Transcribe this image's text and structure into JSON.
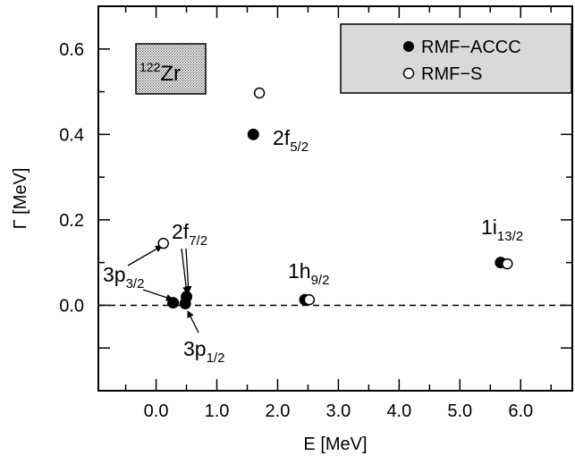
{
  "chart_data": {
    "type": "scatter",
    "xlabel": "E [MeV]",
    "ylabel": "Γ [MeV]",
    "xlim": [
      -0.95,
      6.85
    ],
    "ylim": [
      -0.2,
      0.7
    ],
    "x_ticks": [
      0.0,
      1.0,
      2.0,
      3.0,
      4.0,
      5.0,
      6.0
    ],
    "x_tick_labels": [
      "0.0",
      "1.0",
      "2.0",
      "3.0",
      "4.0",
      "5.0",
      "6.0"
    ],
    "y_ticks": [
      -0.1,
      0.0,
      0.2,
      0.4,
      0.6
    ],
    "y_tick_labels": [
      "",
      "0.0",
      "0.2",
      "0.4",
      "0.6"
    ],
    "reference_line": {
      "y": 0.0,
      "style": "dashed"
    },
    "nucleus_label": {
      "mass": "122",
      "symbol": "Zr"
    },
    "legend_position": "top-right",
    "series": [
      {
        "name": "RMF−ACCC",
        "marker": "filled-circle",
        "color": "#000000",
        "points": [
          {
            "x": 0.28,
            "y": 0.006
          },
          {
            "x": 0.48,
            "y": 0.004
          },
          {
            "x": 0.5,
            "y": 0.02
          },
          {
            "x": 1.6,
            "y": 0.4
          },
          {
            "x": 2.45,
            "y": 0.013
          },
          {
            "x": 5.67,
            "y": 0.1
          }
        ]
      },
      {
        "name": "RMF−S",
        "marker": "open-circle",
        "color": "#000000",
        "points": [
          {
            "x": 0.12,
            "y": 0.145
          },
          {
            "x": 1.7,
            "y": 0.497
          },
          {
            "x": 2.52,
            "y": 0.013
          },
          {
            "x": 5.78,
            "y": 0.097
          }
        ]
      }
    ],
    "state_labels": [
      {
        "main": "2f",
        "sub": "5/2"
      },
      {
        "main": "2f",
        "sub": "7/2"
      },
      {
        "main": "3p",
        "sub": "3/2"
      },
      {
        "main": "3p",
        "sub": "1/2"
      },
      {
        "main": "1h",
        "sub": "9/2"
      },
      {
        "main": "1i",
        "sub": "13/2"
      }
    ]
  }
}
